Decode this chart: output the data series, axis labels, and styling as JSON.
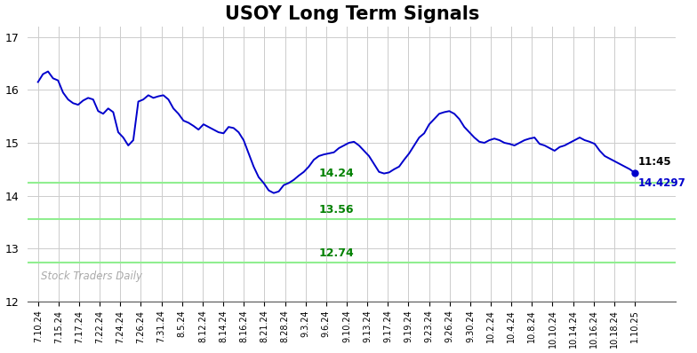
{
  "title": "USOY Long Term Signals",
  "x_labels": [
    "7.10.24",
    "7.15.24",
    "7.17.24",
    "7.22.24",
    "7.24.24",
    "7.26.24",
    "7.31.24",
    "8.5.24",
    "8.12.24",
    "8.14.24",
    "8.16.24",
    "8.21.24",
    "8.28.24",
    "9.3.24",
    "9.6.24",
    "9.10.24",
    "9.13.24",
    "9.17.24",
    "9.19.24",
    "9.23.24",
    "9.26.24",
    "9.30.24",
    "10.2.24",
    "10.4.24",
    "10.8.24",
    "10.10.24",
    "10.14.24",
    "10.16.24",
    "10.18.24",
    "1.10.25"
  ],
  "y_series": [
    16.15,
    16.3,
    16.35,
    16.22,
    16.18,
    15.95,
    15.82,
    15.75,
    15.72,
    15.8,
    15.85,
    15.82,
    15.6,
    15.55,
    15.65,
    15.58,
    15.2,
    15.1,
    14.95,
    15.05,
    15.78,
    15.82,
    15.9,
    15.85,
    15.88,
    15.9,
    15.82,
    15.65,
    15.55,
    15.42,
    15.38,
    15.32,
    15.25,
    15.35,
    15.3,
    15.25,
    15.2,
    15.18,
    15.3,
    15.28,
    15.2,
    15.05,
    14.8,
    14.55,
    14.35,
    14.24,
    14.1,
    14.05,
    14.08,
    14.2,
    14.24,
    14.3,
    14.38,
    14.45,
    14.55,
    14.68,
    14.75,
    14.78,
    14.8,
    14.82,
    14.9,
    14.95,
    15.0,
    15.02,
    14.95,
    14.85,
    14.75,
    14.6,
    14.45,
    14.42,
    14.44,
    14.5,
    14.55,
    14.68,
    14.8,
    14.95,
    15.1,
    15.18,
    15.35,
    15.45,
    15.55,
    15.58,
    15.6,
    15.55,
    15.45,
    15.3,
    15.2,
    15.1,
    15.02,
    15.0,
    15.05,
    15.08,
    15.05,
    15.0,
    14.98,
    14.95,
    15.0,
    15.05,
    15.08,
    15.1,
    14.98,
    14.95,
    14.9,
    14.85,
    14.92,
    14.95,
    15.0,
    15.05,
    15.1,
    15.05,
    15.02,
    14.98,
    14.85,
    14.75,
    14.7,
    14.65,
    14.6,
    14.55,
    14.5,
    14.4297
  ],
  "line_color": "#0000cc",
  "hlines": [
    14.24,
    13.56,
    12.74
  ],
  "hline_color": "#90ee90",
  "hline_labels": [
    "14.24",
    "13.56",
    "12.74"
  ],
  "annotation_label": "11:45",
  "annotation_value": "14.4297",
  "annotation_color_label": "black",
  "annotation_color_value": "#0000cc",
  "watermark": "Stock Traders Daily",
  "watermark_color": "#aaaaaa",
  "ylim": [
    12.0,
    17.2
  ],
  "yticks": [
    12,
    13,
    14,
    15,
    16,
    17
  ],
  "bg_color": "#ffffff",
  "grid_color": "#cccccc",
  "title_fontsize": 15,
  "title_fontweight": "bold"
}
